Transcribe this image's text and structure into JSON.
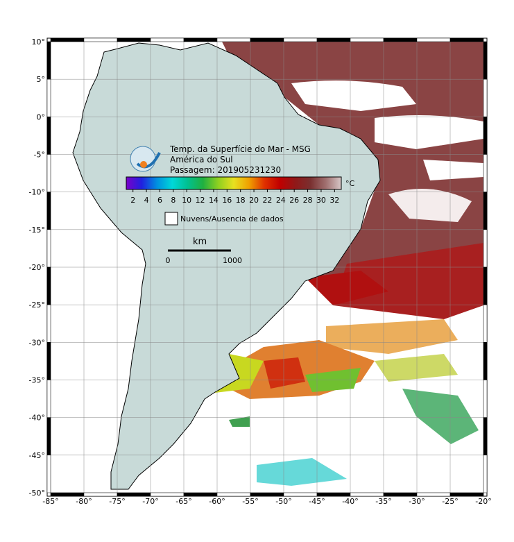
{
  "header": {
    "lines": [
      "Temp. da Superfície do Mar - MSG",
      "América do Sul",
      "Passagem: 201905231230"
    ]
  },
  "colorbar": {
    "ticks": [
      2,
      4,
      6,
      8,
      10,
      12,
      14,
      16,
      18,
      20,
      22,
      24,
      26,
      28,
      30,
      32
    ],
    "lim": [
      1,
      33
    ],
    "unit": "°C",
    "colors": [
      "#7a00c8",
      "#2020e0",
      "#0090e0",
      "#00d8d8",
      "#00c090",
      "#20b040",
      "#90d020",
      "#e8e020",
      "#f0a000",
      "#e03000",
      "#c00000",
      "#901818",
      "#7a3030",
      "#a07070",
      "#d8c8c8"
    ]
  },
  "legend": {
    "label": "Nuvens/Ausencia de dados"
  },
  "scale": {
    "unit": "km",
    "labels": [
      "0",
      "1000"
    ]
  },
  "map": {
    "xlim": [
      -85,
      -20
    ],
    "ylim": [
      -50,
      10
    ],
    "lon_ticks": [
      {
        "value": -85,
        "label": "-85°"
      },
      {
        "value": -80,
        "label": "-80°"
      },
      {
        "value": -75,
        "label": "-75°"
      },
      {
        "value": -70,
        "label": "-70°"
      },
      {
        "value": -65,
        "label": "-65°"
      },
      {
        "value": -60,
        "label": "-60°"
      },
      {
        "value": -55,
        "label": "-55°"
      },
      {
        "value": -50,
        "label": "-50°"
      },
      {
        "value": -45,
        "label": "-45°"
      },
      {
        "value": -40,
        "label": "-40°"
      },
      {
        "value": -35,
        "label": "-35°"
      },
      {
        "value": -30,
        "label": "-30°"
      },
      {
        "value": -25,
        "label": "-25°"
      },
      {
        "value": -20,
        "label": "-20°"
      }
    ],
    "lat_ticks": [
      {
        "value": 10,
        "label": "10°"
      },
      {
        "value": 5,
        "label": "5°"
      },
      {
        "value": 0,
        "label": "0°"
      },
      {
        "value": -5,
        "label": "-5°"
      },
      {
        "value": -10,
        "label": "-10°"
      },
      {
        "value": -15,
        "label": "-15°"
      },
      {
        "value": -20,
        "label": "-20°"
      },
      {
        "value": -25,
        "label": "-25°"
      },
      {
        "value": -30,
        "label": "-30°"
      },
      {
        "value": -35,
        "label": "-35°"
      },
      {
        "value": -40,
        "label": "-40°"
      },
      {
        "value": -45,
        "label": "-45°"
      },
      {
        "value": -50,
        "label": "-50°"
      }
    ]
  }
}
